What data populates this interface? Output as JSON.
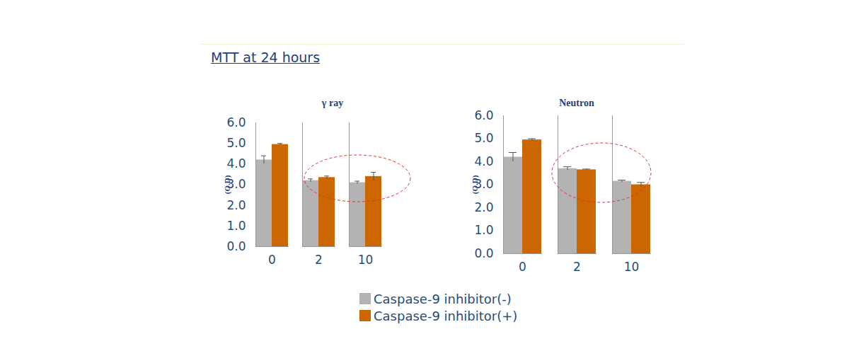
{
  "title": "MTT at 24 hours",
  "chart_data": [
    {
      "type": "bar",
      "title": "γ ray",
      "ylabel": "(O.D)",
      "categories": [
        "0",
        "2",
        "10"
      ],
      "series": [
        {
          "name": "Caspase-9 inhibitor(-)",
          "color": "#b3b3b3",
          "values": [
            4.2,
            3.2,
            3.1
          ],
          "errors": [
            0.2,
            0.08,
            0.07
          ]
        },
        {
          "name": "Caspase-9 inhibitor(+)",
          "color": "#cc6600",
          "values": [
            4.95,
            3.35,
            3.4
          ],
          "errors": [
            0.05,
            0.07,
            0.2
          ]
        }
      ],
      "ylim": [
        0,
        6
      ],
      "yticks": [
        0,
        1,
        2,
        3,
        4,
        5,
        6
      ],
      "grid": false,
      "legend": "bottom"
    },
    {
      "type": "bar",
      "title": "Neutron",
      "ylabel": "(O.D)",
      "categories": [
        "0",
        "2",
        "10"
      ],
      "series": [
        {
          "name": "Caspase-9 inhibitor(-)",
          "color": "#b3b3b3",
          "values": [
            4.2,
            3.7,
            3.15
          ],
          "errors": [
            0.2,
            0.08,
            0.05
          ]
        },
        {
          "name": "Caspase-9 inhibitor(+)",
          "color": "#cc6600",
          "values": [
            4.95,
            3.65,
            3.0
          ],
          "errors": [
            0.05,
            0.03,
            0.1
          ]
        }
      ],
      "ylim": [
        0,
        6
      ],
      "yticks": [
        0,
        1,
        2,
        3,
        4,
        5,
        6
      ],
      "grid": false,
      "legend": "bottom"
    }
  ]
}
